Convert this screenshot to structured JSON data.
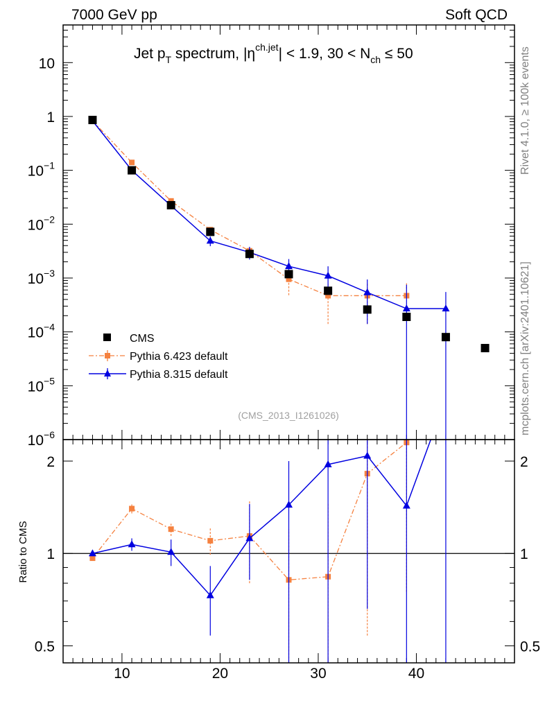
{
  "header": {
    "left": "7000 GeV pp",
    "right": "Soft QCD"
  },
  "side_labels": {
    "rivet": "Rivet 4.1.0, ≥ 100k events",
    "mcplots": "mcplots.cern.ch [arXiv:2401.10621]"
  },
  "chart_data": {
    "type": "scatter",
    "title": "Jet pT spectrum, |ηch.jet| < 1.9, 30 < Nch ≤ 50",
    "title_parts": {
      "jet": "Jet p",
      "t_sub": "T",
      "spectrum": " spectrum, |",
      "eta": "η",
      "eta_sup": "ch.jet",
      "cond1": "| < 1.9, 30 < N",
      "nch_sub": "ch",
      "cond2": " ≤ 50"
    },
    "watermark": "(CMS_2013_I1261026)",
    "xlabel": "",
    "xlim": [
      4,
      50
    ],
    "x_ticks": [
      "10",
      "20",
      "30",
      "40"
    ],
    "main": {
      "yscale": "log",
      "ylim": [
        1e-06,
        50
      ],
      "y_ticks": [
        {
          "base": "10",
          "exp": "",
          "text": "10",
          "value": 10
        },
        {
          "base": "1",
          "exp": "",
          "text": "1",
          "value": 1
        },
        {
          "base": "10",
          "exp": "−1",
          "value": 0.1
        },
        {
          "base": "10",
          "exp": "−2",
          "value": 0.01
        },
        {
          "base": "10",
          "exp": "−3",
          "value": 0.001
        },
        {
          "base": "10",
          "exp": "−4",
          "value": 0.0001
        },
        {
          "base": "10",
          "exp": "−5",
          "value": 1e-05
        },
        {
          "base": "10",
          "exp": "−6",
          "value": 1e-06
        }
      ]
    },
    "ratio": {
      "ylabel": "Ratio to CMS",
      "yscale": "log",
      "ylim": [
        0.44,
        2.35
      ],
      "y_ticks": [
        "0.5",
        "1",
        "2"
      ]
    },
    "legend": {
      "position": "lower-left",
      "entries": [
        "CMS",
        "Pythia 6.423 default",
        "Pythia 8.315 default"
      ]
    },
    "series": [
      {
        "name": "CMS",
        "style": "square",
        "color": "#000000",
        "x": [
          7,
          11,
          15,
          19,
          23,
          27,
          31,
          35,
          39,
          43,
          47
        ],
        "y": [
          0.86,
          0.1,
          0.0225,
          0.0072,
          0.0028,
          0.00118,
          0.00058,
          0.00026,
          0.00019,
          8e-05,
          5e-05
        ]
      },
      {
        "name": "Pythia 6.423 default",
        "style": "dashdot-square",
        "color": "#f5813f",
        "x": [
          7,
          11,
          15,
          19,
          23,
          27,
          31,
          35,
          39
        ],
        "y": [
          0.83,
          0.14,
          0.027,
          0.0079,
          0.0032,
          0.00095,
          0.00047,
          0.00047,
          0.00047
        ],
        "yerr_low": [
          0.83,
          0.134,
          0.0262,
          0.0074,
          0.0027,
          0.00048,
          0.00014,
          0.00014,
          0.00047
        ],
        "yerr_high": [
          0.84,
          0.146,
          0.028,
          0.0085,
          0.0037,
          0.0014,
          0.0008,
          0.0008,
          0.0008
        ],
        "ratio": [
          0.965,
          1.4,
          1.2,
          1.1,
          1.14,
          0.82,
          0.84,
          1.82,
          2.3
        ],
        "ratio_low": [
          0.955,
          1.35,
          1.14,
          0.99,
          0.8,
          0.3,
          0.25,
          0.54,
          0.75
        ],
        "ratio_high": [
          0.975,
          1.45,
          1.25,
          1.21,
          1.48,
          1.2,
          1.45,
          3.0,
          3.0
        ]
      },
      {
        "name": "Pythia 8.315 default",
        "style": "solid-triangle",
        "color": "#0000e0",
        "x": [
          7,
          11,
          15,
          19,
          23,
          27,
          31,
          35,
          39,
          43
        ],
        "y": [
          0.83,
          0.1,
          0.022,
          0.0049,
          0.003,
          0.00165,
          0.0011,
          0.00054,
          0.00027,
          0.00027
        ],
        "yerr_low": [
          0.82,
          0.096,
          0.0212,
          0.0039,
          0.0022,
          0.00105,
          0.00065,
          0.00014,
          1e-06,
          1e-06
        ],
        "yerr_high": [
          0.84,
          0.104,
          0.0228,
          0.0059,
          0.0038,
          0.00225,
          0.00165,
          0.00094,
          0.00075,
          0.00055
        ],
        "ratio": [
          1.0,
          1.07,
          1.01,
          0.73,
          1.12,
          1.44,
          1.95,
          2.08,
          1.43,
          3.2
        ],
        "ratio_low": [
          0.98,
          1.02,
          0.91,
          0.54,
          0.82,
          0.4,
          0.3,
          0.66,
          0.3,
          0.3
        ],
        "ratio_high": [
          1.02,
          1.12,
          1.11,
          0.91,
          1.45,
          2.0,
          3.0,
          3.0,
          3.0,
          3.0
        ]
      }
    ]
  }
}
